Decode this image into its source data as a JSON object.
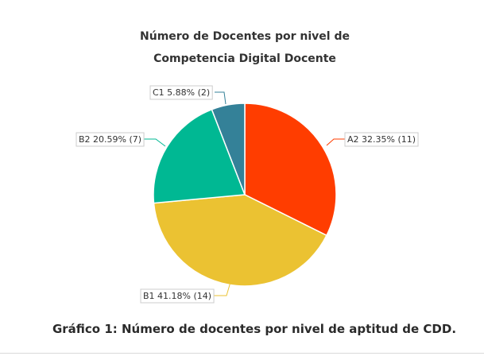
{
  "chart_data": {
    "type": "pie",
    "title": "Número de Docentes por nivel de Competencia Digital Docente",
    "title_lines": [
      "Número de Docentes por nivel de",
      "Competencia Digital Docente"
    ],
    "caption": "Gráfico 1: Número de docentes por nivel de aptitud de CDD.",
    "slices": [
      {
        "name": "A2",
        "value": 11,
        "percent": 32.35,
        "label": "A2 32.35% (11)",
        "color": "#FF3D00"
      },
      {
        "name": "B1",
        "value": 14,
        "percent": 41.18,
        "label": "B1 41.18% (14)",
        "color": "#EBC232"
      },
      {
        "name": "B2",
        "value": 7,
        "percent": 20.59,
        "label": "B2 20.59% (7)",
        "color": "#00B893"
      },
      {
        "name": "C1",
        "value": 2,
        "percent": 5.88,
        "label": "C1 5.88% (2)",
        "color": "#348198"
      }
    ],
    "legend": "none"
  }
}
